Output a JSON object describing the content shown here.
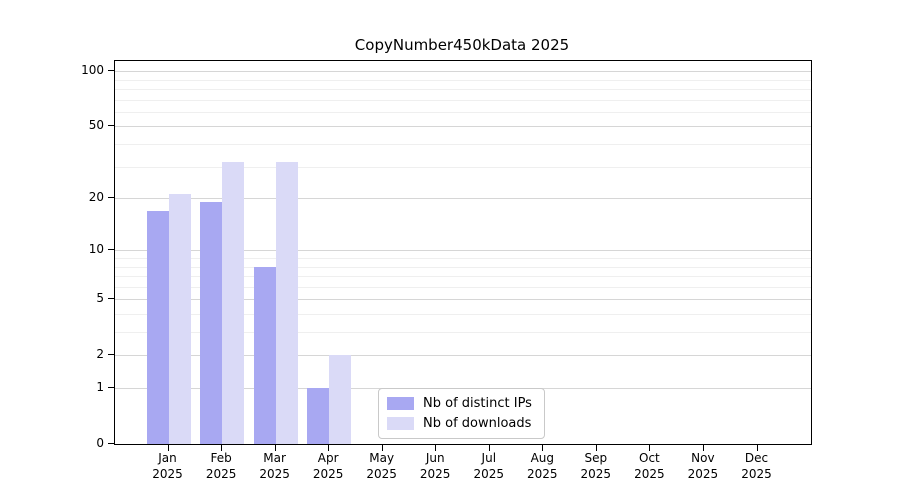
{
  "title": "CopyNumber450kData 2025",
  "legend": {
    "items": [
      {
        "label": "Nb of distinct IPs",
        "color": "#a8a8f2"
      },
      {
        "label": "Nb of downloads",
        "color": "#dadaf7"
      }
    ]
  },
  "axes": {
    "y": {
      "major_ticks": [
        0,
        1,
        2,
        5,
        10,
        20,
        50,
        100
      ],
      "minor_gridlines": [
        3,
        4,
        6,
        7,
        8,
        9,
        30,
        40,
        60,
        70,
        80,
        90
      ],
      "scale": "log1p",
      "max": 113.6
    },
    "x": {
      "months": [
        "Jan",
        "Feb",
        "Mar",
        "Apr",
        "May",
        "Jun",
        "Jul",
        "Aug",
        "Sep",
        "Oct",
        "Nov",
        "Dec"
      ],
      "year": "2025"
    }
  },
  "colors": {
    "major_grid": "#d6d6d6",
    "minor_grid": "#efefef",
    "axis": "#000000"
  },
  "chart_data": {
    "type": "bar",
    "title": "CopyNumber450kData 2025",
    "categories": [
      "Jan 2025",
      "Feb 2025",
      "Mar 2025",
      "Apr 2025",
      "May 2025",
      "Jun 2025",
      "Jul 2025",
      "Aug 2025",
      "Sep 2025",
      "Oct 2025",
      "Nov 2025",
      "Dec 2025"
    ],
    "series": [
      {
        "name": "Nb of distinct IPs",
        "color": "#a8a8f2",
        "values": [
          17,
          19,
          8,
          1,
          0,
          0,
          0,
          0,
          0,
          0,
          0,
          0
        ]
      },
      {
        "name": "Nb of downloads",
        "color": "#dadaf7",
        "values": [
          21,
          32,
          32,
          2,
          0,
          0,
          0,
          0,
          0,
          0,
          0,
          0
        ]
      }
    ],
    "yscale": "log1p",
    "ylim": [
      0,
      113.6
    ],
    "yticks": [
      0,
      1,
      2,
      5,
      10,
      20,
      50,
      100
    ],
    "grid": true,
    "legend_position": "lower center",
    "xlabel": "",
    "ylabel": ""
  }
}
